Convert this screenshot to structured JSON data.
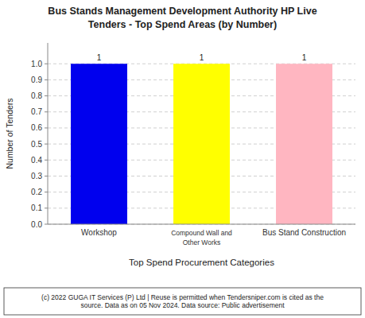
{
  "chart_data": {
    "type": "bar",
    "title": "Bus Stands Management Development Authority HP Live",
    "subtitle": "Tenders - Top Spend Areas (by Number)",
    "categories": [
      "Workshop",
      "Compound Wall and\nOther Works",
      "Bus Stand Construction"
    ],
    "values": [
      1,
      1,
      1
    ],
    "colors": [
      "#0000EE",
      "#FFFF00",
      "#FFB6C1"
    ],
    "data_labels": true,
    "xlabel": "Top Spend Procurement Categories",
    "ylabel": "Number of Tenders",
    "ylim": [
      0,
      1.13
    ],
    "yticks": [
      {
        "value": 0,
        "label": "0.0"
      },
      0.1,
      0.2,
      0.3,
      0.4,
      0.5,
      0.6,
      0.7,
      0.8,
      0.9,
      {
        "value": 1,
        "label": "1.0"
      }
    ],
    "grid": true,
    "annotations": [
      "(c) 2022 GUGA IT Services (P) Ltd | Reuse is permitted when Tendersniper.com is cited as the",
      "source. Data as on 05 Nov 2024. Data source: Public advertisement"
    ]
  }
}
